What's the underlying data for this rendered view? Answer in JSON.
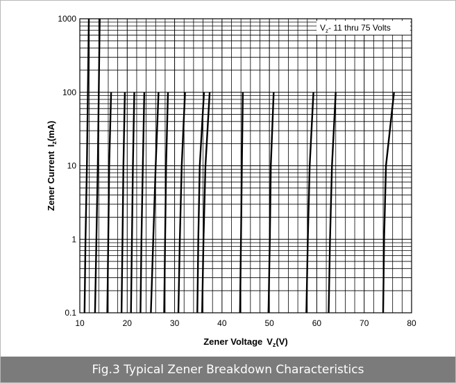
{
  "figure_caption": "Fig.3 Typical Zener Breakdown Characteristics",
  "chart_data": {
    "type": "line",
    "title": "",
    "annotation": {
      "prefix": "V",
      "sub": "z",
      "text": "- 11 thru 75 Volts"
    },
    "xlabel": {
      "text": "Zener Voltage",
      "symbol": "V",
      "sub": "z",
      "unit": "(V)"
    },
    "ylabel": {
      "text": "Zener Current",
      "symbol": "I",
      "sub": "z",
      "unit": "(mA)"
    },
    "x_scale": "linear",
    "y_scale": "log",
    "xlim": [
      10,
      80
    ],
    "ylim": [
      0.1,
      1000
    ],
    "xticks": [
      10,
      20,
      30,
      40,
      50,
      60,
      70,
      80
    ],
    "xtick_labels": [
      "10",
      "20",
      "30",
      "40",
      "50",
      "60",
      "70",
      "80"
    ],
    "yticks": [
      0.1,
      1,
      10,
      100,
      1000
    ],
    "ytick_labels": [
      "0.1",
      "1",
      "10",
      "100",
      "1000"
    ],
    "grid": true,
    "line_color": "#000000",
    "series": [
      {
        "x": [
          11.0,
          11.2,
          11.5,
          11.9
        ],
        "y": [
          0.1,
          1,
          10,
          1000
        ]
      },
      {
        "x": [
          13.2,
          13.5,
          13.8,
          14.2
        ],
        "y": [
          0.1,
          1,
          10,
          1000
        ]
      },
      {
        "x": [
          15.8,
          16.0,
          16.2,
          16.6
        ],
        "y": [
          0.1,
          1,
          10,
          100
        ]
      },
      {
        "x": [
          18.8,
          19.0,
          19.2,
          19.5
        ],
        "y": [
          0.1,
          1,
          10,
          100
        ]
      },
      {
        "x": [
          20.8,
          21.0,
          21.2,
          21.5
        ],
        "y": [
          0.1,
          1,
          10,
          100
        ]
      },
      {
        "x": [
          22.8,
          23.0,
          23.3,
          23.6
        ],
        "y": [
          0.1,
          1,
          10,
          100
        ]
      },
      {
        "x": [
          25.0,
          25.5,
          26.0,
          26.6
        ],
        "y": [
          0.1,
          1,
          10,
          100
        ]
      },
      {
        "x": [
          27.8,
          28.0,
          28.2,
          28.6
        ],
        "y": [
          0.1,
          1,
          10,
          100
        ]
      },
      {
        "x": [
          30.8,
          31.1,
          31.5,
          32.2
        ],
        "y": [
          0.1,
          1,
          10,
          100
        ]
      },
      {
        "x": [
          34.8,
          35.0,
          35.3,
          36.2
        ],
        "y": [
          0.1,
          1,
          10,
          100
        ]
      },
      {
        "x": [
          35.8,
          36.1,
          36.5,
          37.4
        ],
        "y": [
          0.1,
          1,
          10,
          100
        ]
      },
      {
        "x": [
          43.8,
          44.0,
          44.2,
          44.4
        ],
        "y": [
          0.1,
          1,
          10,
          100
        ]
      },
      {
        "x": [
          49.8,
          50.1,
          50.3,
          50.9
        ],
        "y": [
          0.1,
          1,
          10,
          100
        ]
      },
      {
        "x": [
          57.8,
          58.1,
          58.5,
          59.3
        ],
        "y": [
          0.1,
          1,
          10,
          100
        ]
      },
      {
        "x": [
          62.5,
          62.8,
          63.2,
          64.0
        ],
        "y": [
          0.1,
          1,
          10,
          100
        ]
      },
      {
        "x": [
          74.0,
          74.2,
          74.6,
          76.3
        ],
        "y": [
          0.1,
          1,
          10,
          100
        ]
      }
    ]
  }
}
